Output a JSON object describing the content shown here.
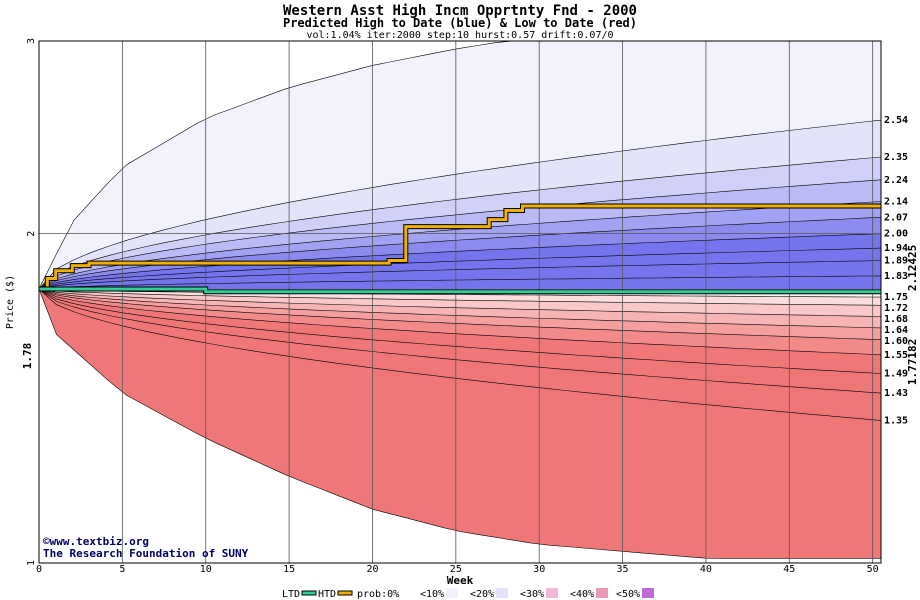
{
  "chart_data": {
    "type": "area",
    "title": "Western Asst High Incm Opprtnty Fnd - 2000",
    "subtitle": "Predicted High to Date (blue) &  Low to Date (red)",
    "params": "vol:1.04% iter:2000 step:10 hurst:0.57 drift:0.07/0",
    "xlabel": "Week",
    "ylabel": "Price ($)",
    "x_ticks": [
      0,
      5,
      10,
      15,
      20,
      25,
      30,
      35,
      40,
      45,
      50
    ],
    "xlim": [
      0,
      50.5
    ],
    "y_scale": "log",
    "y_ticks": [
      1,
      2,
      3
    ],
    "ylim": [
      1,
      3
    ],
    "start_price": "1.78",
    "start_value": 1.78,
    "htd_final_label": "2.12425",
    "ltd_final_label": "1.77182",
    "right_labels": [
      "2.54",
      "2.35",
      "2.24",
      "2.14",
      "2.07",
      "2.00",
      "1.94",
      "1.89",
      "1.83",
      "1.75",
      "1.72",
      "1.68",
      "1.64",
      "1.60",
      "1.55",
      "1.49",
      "1.43",
      "1.35"
    ],
    "high_band_end_values": [
      2.54,
      2.35,
      2.24,
      2.14,
      2.07,
      2.0,
      1.94,
      1.89,
      1.83
    ],
    "low_band_end_values": [
      1.75,
      1.72,
      1.68,
      1.64,
      1.6,
      1.55,
      1.49,
      1.43,
      1.35
    ],
    "outer_envelope": {
      "upper": [
        [
          0,
          1.78
        ],
        [
          2,
          2.05
        ],
        [
          5,
          2.3
        ],
        [
          10,
          2.55
        ],
        [
          15,
          2.72
        ],
        [
          20,
          2.85
        ],
        [
          25,
          2.95
        ],
        [
          28,
          3.0
        ]
      ],
      "lower": [
        [
          0,
          1.78
        ],
        [
          1,
          1.62
        ],
        [
          5,
          1.43
        ],
        [
          10,
          1.3
        ],
        [
          15,
          1.2
        ],
        [
          20,
          1.12
        ],
        [
          25,
          1.07
        ],
        [
          30,
          1.04
        ],
        [
          40,
          1.01
        ]
      ]
    },
    "htd_series": [
      [
        0,
        1.78
      ],
      [
        0.5,
        1.82
      ],
      [
        1,
        1.85
      ],
      [
        2,
        1.87
      ],
      [
        3,
        1.88
      ],
      [
        15,
        1.88
      ],
      [
        21,
        1.89
      ],
      [
        22,
        2.03
      ],
      [
        27,
        2.06
      ],
      [
        28,
        2.1
      ],
      [
        29,
        2.12
      ],
      [
        50.5,
        2.12
      ]
    ],
    "ltd_series": [
      [
        0,
        1.78
      ],
      [
        9.5,
        1.78
      ],
      [
        10,
        1.77
      ],
      [
        50.5,
        1.77
      ]
    ],
    "legend": [
      {
        "label": "LTD",
        "color": "#33cc99"
      },
      {
        "label": "HTD",
        "color": "#f0b000"
      },
      {
        "label": "prob:0%",
        "color": "#ffffff"
      },
      {
        "label": "<10%",
        "color": "#f6f0fa"
      },
      {
        "label": "<20%",
        "color": "#e6e0f8"
      },
      {
        "label": "<30%",
        "color": "#f2b8d8"
      },
      {
        "label": "<40%",
        "color": "#e89ab8"
      },
      {
        "label": "<50%",
        "color": "#c06ad8"
      }
    ],
    "credits": [
      "©www.textbiz.org",
      "The Research Foundation of SUNY"
    ],
    "colors": {
      "high_bands": [
        "#f2f2fd",
        "#e3e3fa",
        "#d0d0f8",
        "#babaf5",
        "#a2a2f2",
        "#8a8aef",
        "#7474ec"
      ],
      "low_bands": [
        "#fdf0f0",
        "#fbdddd",
        "#f9c8c8",
        "#f7b4b4",
        "#f59f9f",
        "#f38a8a",
        "#f07777"
      ],
      "grid": "#555555",
      "htd": "#f0b000",
      "ltd": "#33cc99",
      "start_label": "#006600",
      "htd_label": "#b8860b",
      "ltd_label": "#008060"
    }
  }
}
